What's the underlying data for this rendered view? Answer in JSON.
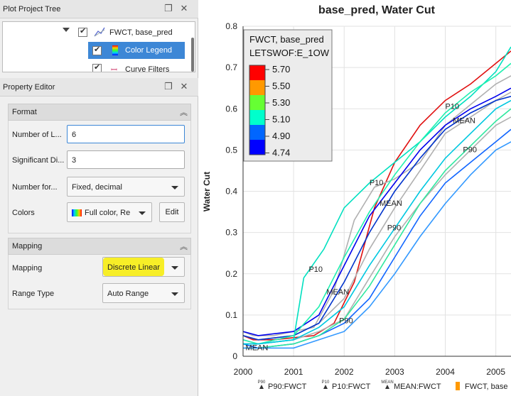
{
  "tree_panel": {
    "title": "Plot Project Tree",
    "items": [
      {
        "label": "FWCT, base_pred"
      },
      {
        "label": "Color Legend"
      },
      {
        "label": "Curve Filters"
      }
    ]
  },
  "property_editor": {
    "title": "Property Editor",
    "format": {
      "header": "Format",
      "number_of_levels_label": "Number of L...",
      "number_of_levels_value": "6",
      "significant_digits_label": "Significant Di...",
      "significant_digits_value": "3",
      "number_format_label": "Number for...",
      "number_format_value": "Fixed, decimal",
      "colors_label": "Colors",
      "colors_value": "Full color, Re",
      "edit_label": "Edit"
    },
    "mapping": {
      "header": "Mapping",
      "mapping_label": "Mapping",
      "mapping_value": "Discrete Linear",
      "range_type_label": "Range Type",
      "range_type_value": "Auto Range"
    }
  },
  "icons": {
    "restore": "restore-icon",
    "close": "close-icon",
    "collapse": "chevron-up-double-icon"
  },
  "chart_data": {
    "type": "line",
    "title": "base_pred, Water Cut",
    "ylabel": "Water Cut",
    "xlabel": "",
    "xlim": [
      2000,
      2005.3
    ],
    "ylim": [
      0,
      0.8
    ],
    "xticks": [
      "2000",
      "2001",
      "2002",
      "2003",
      "2004",
      "2005"
    ],
    "yticks": [
      "0",
      "0.1",
      "0.2",
      "0.3",
      "0.4",
      "0.5",
      "0.6",
      "0.7",
      "0.8"
    ],
    "grid": true,
    "legend": {
      "title_line1": "FWCT, base_pred",
      "title_line2": "LETSWOF:E_1OW",
      "levels": [
        "5.70",
        "5.50",
        "5.30",
        "5.10",
        "4.90",
        "4.74"
      ],
      "colors": [
        "#ff0000",
        "#ff9900",
        "#66ff33",
        "#00ffcc",
        "#0066ff",
        "#0000ff"
      ]
    },
    "bottom_legend": [
      {
        "marker": "P90",
        "label": "P90:FWCT"
      },
      {
        "marker": "P10",
        "label": "P10:FWCT"
      },
      {
        "marker": "MEAN",
        "label": "MEAN:FWCT"
      },
      {
        "marker": "",
        "label": "FWCT, base"
      }
    ],
    "curve_labels": [
      {
        "text": "P10",
        "x": 2004.0,
        "y": 0.6
      },
      {
        "text": "MEAN",
        "x": 2004.15,
        "y": 0.565
      },
      {
        "text": "P90",
        "x": 2004.35,
        "y": 0.495
      },
      {
        "text": "P10",
        "x": 2002.5,
        "y": 0.415
      },
      {
        "text": "MEAN",
        "x": 2002.7,
        "y": 0.365
      },
      {
        "text": "P90",
        "x": 2002.85,
        "y": 0.305
      },
      {
        "text": "P10",
        "x": 2001.3,
        "y": 0.205
      },
      {
        "text": "MEAN",
        "x": 2001.65,
        "y": 0.15
      },
      {
        "text": "P90",
        "x": 2001.9,
        "y": 0.08
      },
      {
        "text": "MEAN",
        "x": 2000.05,
        "y": 0.015
      }
    ],
    "series": [
      {
        "color": "#e01010",
        "x": [
          2000,
          2000.2,
          2000.6,
          2001,
          2001.4,
          2001.8,
          2002.2,
          2002.6,
          2003,
          2003.5,
          2004,
          2004.5,
          2005,
          2005.3
        ],
        "y": [
          0.05,
          0.04,
          0.04,
          0.045,
          0.05,
          0.08,
          0.18,
          0.36,
          0.47,
          0.56,
          0.62,
          0.66,
          0.71,
          0.74
        ]
      },
      {
        "color": "#b0b0b0",
        "x": [
          2000,
          2000.2,
          2000.6,
          2001,
          2001.4,
          2001.8,
          2002.2,
          2002.6,
          2003,
          2003.5,
          2004,
          2004.5,
          2005,
          2005.3
        ],
        "y": [
          0.06,
          0.05,
          0.05,
          0.06,
          0.07,
          0.16,
          0.33,
          0.41,
          0.43,
          0.47,
          0.56,
          0.61,
          0.66,
          0.68
        ]
      },
      {
        "color": "#b0b0b0",
        "x": [
          2000,
          2000.3,
          2001,
          2001.5,
          2002,
          2002.5,
          2003,
          2003.5,
          2004,
          2004.5,
          2005,
          2005.3
        ],
        "y": [
          0.05,
          0.04,
          0.05,
          0.08,
          0.14,
          0.26,
          0.36,
          0.45,
          0.54,
          0.58,
          0.62,
          0.64
        ]
      },
      {
        "color": "#b0b0b0",
        "x": [
          2000,
          2000.3,
          2001,
          2001.5,
          2002,
          2002.5,
          2003,
          2003.5,
          2004,
          2004.5,
          2005,
          2005.3
        ],
        "y": [
          0.04,
          0.03,
          0.04,
          0.06,
          0.09,
          0.19,
          0.29,
          0.37,
          0.44,
          0.5,
          0.56,
          0.58
        ]
      },
      {
        "color": "#0000ee",
        "x": [
          2000,
          2000.3,
          2001,
          2001.5,
          2002,
          2002.5,
          2003,
          2003.5,
          2004,
          2004.5,
          2005,
          2005.3
        ],
        "y": [
          0.06,
          0.05,
          0.06,
          0.1,
          0.22,
          0.34,
          0.42,
          0.5,
          0.56,
          0.6,
          0.63,
          0.65
        ]
      },
      {
        "color": "#0033cc",
        "x": [
          2000,
          2000.3,
          2001,
          2001.5,
          2002,
          2002.5,
          2003,
          2003.5,
          2004,
          2004.5,
          2005,
          2005.3
        ],
        "y": [
          0.05,
          0.04,
          0.05,
          0.08,
          0.18,
          0.3,
          0.4,
          0.48,
          0.55,
          0.59,
          0.62,
          0.63
        ]
      },
      {
        "color": "#1166ff",
        "x": [
          2000,
          2000.3,
          2001,
          2001.5,
          2002,
          2002.5,
          2003,
          2003.5,
          2004,
          2004.5,
          2005,
          2005.3
        ],
        "y": [
          0.03,
          0.02,
          0.03,
          0.05,
          0.08,
          0.14,
          0.24,
          0.34,
          0.42,
          0.47,
          0.52,
          0.55
        ]
      },
      {
        "color": "#00e0c0",
        "x": [
          2000,
          2000.3,
          2001,
          2001.2,
          2001.6,
          2002,
          2002.5,
          2003,
          2003.5,
          2004,
          2004.5,
          2005,
          2005.3
        ],
        "y": [
          0.03,
          0.03,
          0.04,
          0.19,
          0.26,
          0.36,
          0.42,
          0.47,
          0.52,
          0.58,
          0.63,
          0.69,
          0.75
        ]
      },
      {
        "color": "#20f0b0",
        "x": [
          2000,
          2000.3,
          2001,
          2001.5,
          2002,
          2002.5,
          2003,
          2003.5,
          2004,
          2004.5,
          2005,
          2005.3
        ],
        "y": [
          0.04,
          0.03,
          0.05,
          0.12,
          0.24,
          0.35,
          0.44,
          0.52,
          0.59,
          0.64,
          0.68,
          0.71
        ]
      },
      {
        "color": "#00c8e0",
        "x": [
          2000,
          2000.3,
          2001,
          2001.5,
          2002,
          2002.5,
          2003,
          2003.5,
          2004,
          2004.5,
          2005,
          2005.3
        ],
        "y": [
          0.03,
          0.03,
          0.04,
          0.07,
          0.12,
          0.22,
          0.31,
          0.4,
          0.48,
          0.54,
          0.6,
          0.62
        ]
      },
      {
        "color": "#30e8a0",
        "x": [
          2000,
          2000.3,
          2001,
          2001.5,
          2002,
          2002.5,
          2003,
          2003.5,
          2004,
          2004.5,
          2005,
          2005.3
        ],
        "y": [
          0.02,
          0.02,
          0.03,
          0.05,
          0.09,
          0.17,
          0.27,
          0.37,
          0.45,
          0.51,
          0.57,
          0.6
        ]
      },
      {
        "color": "#3399ff",
        "x": [
          2000,
          2000.3,
          2001,
          2001.5,
          2002,
          2002.5,
          2003,
          2003.5,
          2004,
          2004.5,
          2005,
          2005.3
        ],
        "y": [
          0.02,
          0.02,
          0.02,
          0.04,
          0.06,
          0.12,
          0.2,
          0.29,
          0.37,
          0.44,
          0.5,
          0.52
        ]
      }
    ]
  }
}
